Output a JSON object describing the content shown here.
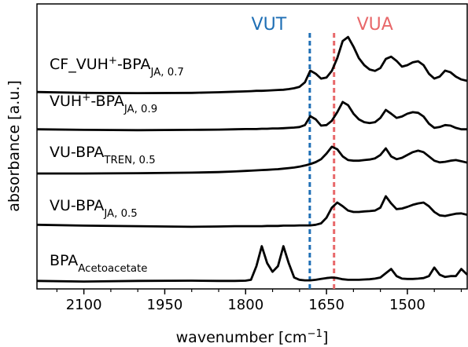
{
  "chart_data": {
    "type": "line",
    "x_label": [
      {
        "text": "wavenumber [cm",
        "style": "normal"
      },
      {
        "text": "−1",
        "style": "sup"
      },
      {
        "text": "]",
        "style": "normal"
      }
    ],
    "y_label": "absorbance [a.u.]",
    "xlim": [
      2187,
      1389
    ],
    "ylim": [
      0,
      100
    ],
    "xticks": [
      2100,
      1950,
      1800,
      1650,
      1500
    ],
    "xminorticks": [
      2150,
      2050,
      2000,
      1900,
      1850,
      1750,
      1700,
      1600,
      1550,
      1450,
      1400
    ],
    "annotations": [
      {
        "text": "VUT",
        "x": 1681,
        "color": "#1f6fb5"
      },
      {
        "text": "VUA",
        "x": 1636,
        "color": "#e8686a"
      }
    ],
    "x": [
      2187,
      2100,
      2000,
      1900,
      1850,
      1820,
      1800,
      1790,
      1780,
      1770,
      1760,
      1750,
      1740,
      1730,
      1720,
      1710,
      1700,
      1690,
      1680,
      1670,
      1660,
      1650,
      1640,
      1630,
      1620,
      1610,
      1600,
      1590,
      1580,
      1570,
      1560,
      1550,
      1540,
      1530,
      1520,
      1510,
      1500,
      1490,
      1480,
      1470,
      1460,
      1450,
      1440,
      1430,
      1420,
      1410,
      1400,
      1389
    ],
    "series": [
      {
        "name": [
          {
            "text": "CF_VUH",
            "style": "normal"
          },
          {
            "text": "+",
            "style": "sup"
          },
          {
            "text": "-BPA",
            "style": "normal"
          },
          {
            "text": "JA, 0.7",
            "style": "sub"
          }
        ],
        "color": "#000000",
        "values": [
          69.1,
          68.8,
          68.7,
          68.8,
          69,
          69.2,
          69.3,
          69.4,
          69.5,
          69.5,
          69.6,
          69.7,
          69.8,
          69.9,
          70.1,
          70.4,
          70.9,
          72.5,
          76.6,
          75.5,
          73.8,
          74.2,
          76.5,
          81,
          87,
          88.4,
          85,
          81,
          78.5,
          77,
          76.5,
          77.5,
          80.7,
          81.5,
          80,
          78,
          78.5,
          79.5,
          79.9,
          78.5,
          75.5,
          73.8,
          74.5,
          76.6,
          76,
          74.5,
          73.5,
          73
        ]
      },
      {
        "name": [
          {
            "text": "VUH",
            "style": "normal"
          },
          {
            "text": "+",
            "style": "sup"
          },
          {
            "text": "-BPA",
            "style": "normal"
          },
          {
            "text": "JA, 0.9",
            "style": "sub"
          }
        ],
        "color": "#000000",
        "values": [
          56,
          55.8,
          55.7,
          55.8,
          55.9,
          56,
          56.1,
          56.1,
          56.1,
          56.2,
          56.2,
          56.3,
          56.3,
          56.4,
          56.5,
          56.6,
          56.8,
          57.5,
          60.6,
          59.5,
          57.3,
          57.5,
          59,
          62,
          65.6,
          64.5,
          61.5,
          59.5,
          58.5,
          58.2,
          58.5,
          60,
          62.8,
          61.5,
          60,
          60.5,
          61.5,
          62,
          61.8,
          60.5,
          58,
          56.5,
          56.8,
          57.5,
          57.3,
          56.5,
          56,
          56
        ]
      },
      {
        "name": [
          {
            "text": "VU-BPA",
            "style": "normal"
          },
          {
            "text": "TREN, 0.5",
            "style": "sub"
          }
        ],
        "color": "#000000",
        "values": [
          40.5,
          40.5,
          40.6,
          40.8,
          41,
          41.2,
          41.4,
          41.5,
          41.6,
          41.7,
          41.8,
          41.9,
          42,
          42.2,
          42.4,
          42.6,
          42.9,
          43.3,
          43.8,
          44.5,
          45.5,
          47.5,
          49.9,
          49,
          46.5,
          45.2,
          45,
          45,
          45.2,
          45.4,
          45.8,
          47,
          49.3,
          46.5,
          45.5,
          46,
          47,
          48,
          48.5,
          48,
          46.5,
          45,
          44.4,
          44.6,
          45,
          45.2,
          44.8,
          44.3
        ]
      },
      {
        "name": [
          {
            "text": "VU-BPA",
            "style": "normal"
          },
          {
            "text": "JA, 0.5",
            "style": "sub"
          }
        ],
        "color": "#000000",
        "values": [
          22.5,
          22.2,
          22,
          21.8,
          21.9,
          22,
          22,
          22,
          22,
          22,
          22.1,
          22.1,
          22.1,
          22.2,
          22.2,
          22.2,
          22.3,
          22.3,
          22.3,
          22.5,
          23,
          25,
          28.5,
          30.3,
          29,
          27.5,
          27,
          27,
          27.2,
          27.3,
          27.5,
          28.5,
          32.5,
          30,
          28,
          28.2,
          28.8,
          29.5,
          30,
          30.3,
          29,
          27,
          25.8,
          25.6,
          26,
          26.4,
          26.5,
          26
        ]
      },
      {
        "name": [
          {
            "text": "BPA",
            "style": "normal"
          },
          {
            "text": "Acetoacetate",
            "style": "sub"
          }
        ],
        "color": "#000000",
        "values": [
          2.8,
          2.6,
          2.8,
          2.9,
          2.8,
          2.8,
          2.9,
          3.2,
          8,
          15,
          9,
          6,
          8,
          15,
          9,
          4,
          3.2,
          3,
          3,
          3.2,
          3.5,
          3.8,
          4,
          3.8,
          3.4,
          3.2,
          3.2,
          3.2,
          3.3,
          3.4,
          3.6,
          4,
          5.5,
          7,
          4.5,
          3.6,
          3.5,
          3.5,
          3.6,
          3.8,
          4.5,
          7.5,
          5,
          4.2,
          4.5,
          4.5,
          7,
          5
        ]
      }
    ]
  }
}
